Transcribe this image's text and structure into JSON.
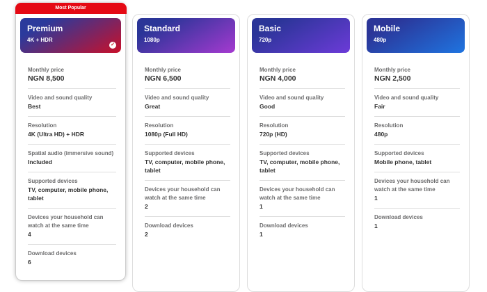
{
  "banner": "Most Popular",
  "plans": [
    {
      "name": "Premium",
      "resolution_label": "4K + HDR",
      "selected": true,
      "gradient": [
        "#2b3a9c",
        "#c9102a"
      ],
      "rows": [
        {
          "label": "Monthly price",
          "value": "NGN 8,500"
        },
        {
          "label": "Video and sound quality",
          "value": "Best"
        },
        {
          "label": "Resolution",
          "value": "4K (Ultra HD) + HDR"
        },
        {
          "label": "Spatial audio (immersive sound)",
          "value": "Included"
        },
        {
          "label": "Supported devices",
          "value": "TV, computer, mobile phone, tablet"
        },
        {
          "label": "Devices your household can watch at the same time",
          "value": "4"
        },
        {
          "label": "Download devices",
          "value": "6"
        }
      ]
    },
    {
      "name": "Standard",
      "resolution_label": "1080p",
      "selected": false,
      "gradient": [
        "#2b3598",
        "#a53ad0"
      ],
      "rows": [
        {
          "label": "Monthly price",
          "value": "NGN 6,500"
        },
        {
          "label": "Video and sound quality",
          "value": "Great"
        },
        {
          "label": "Resolution",
          "value": "1080p (Full HD)"
        },
        {
          "label": "Supported devices",
          "value": "TV, computer, mobile phone, tablet"
        },
        {
          "label": "Devices your household can watch at the same time",
          "value": "2"
        },
        {
          "label": "Download devices",
          "value": "2"
        }
      ]
    },
    {
      "name": "Basic",
      "resolution_label": "720p",
      "selected": false,
      "gradient": [
        "#2b3598",
        "#6c3bd8"
      ],
      "rows": [
        {
          "label": "Monthly price",
          "value": "NGN 4,000"
        },
        {
          "label": "Video and sound quality",
          "value": "Good"
        },
        {
          "label": "Resolution",
          "value": "720p (HD)"
        },
        {
          "label": "Supported devices",
          "value": "TV, computer, mobile phone, tablet"
        },
        {
          "label": "Devices your household can watch at the same time",
          "value": "1"
        },
        {
          "label": "Download devices",
          "value": "1"
        }
      ]
    },
    {
      "name": "Mobile",
      "resolution_label": "480p",
      "selected": false,
      "gradient": [
        "#2b3598",
        "#1f74e0"
      ],
      "rows": [
        {
          "label": "Monthly price",
          "value": "NGN 2,500"
        },
        {
          "label": "Video and sound quality",
          "value": "Fair"
        },
        {
          "label": "Resolution",
          "value": "480p"
        },
        {
          "label": "Supported devices",
          "value": "Mobile phone, tablet"
        },
        {
          "label": "Devices your household can watch at the same time",
          "value": "1"
        },
        {
          "label": "Download devices",
          "value": "1"
        }
      ]
    }
  ]
}
